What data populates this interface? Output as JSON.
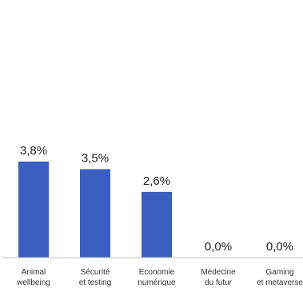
{
  "chart_data": {
    "type": "bar",
    "categories": [
      [
        "Animal",
        "wellbeing"
      ],
      [
        "Sécurité",
        "et testing"
      ],
      [
        "Economie",
        "numérique"
      ],
      [
        "Médecine",
        "du futur"
      ],
      [
        "Gaming",
        "et metaverse"
      ]
    ],
    "values": [
      3.8,
      3.5,
      2.6,
      0.0,
      0.0
    ],
    "data_labels": [
      "3,8%",
      "3,5%",
      "2,6%",
      "0,0%",
      "0,0%"
    ],
    "unit": "%",
    "ylim": [
      0,
      4.5
    ],
    "grid": false,
    "legend": "none",
    "colors": {
      "bar": "#3A5FBF",
      "axis": "#BFBFBF",
      "text": "#222222"
    }
  }
}
